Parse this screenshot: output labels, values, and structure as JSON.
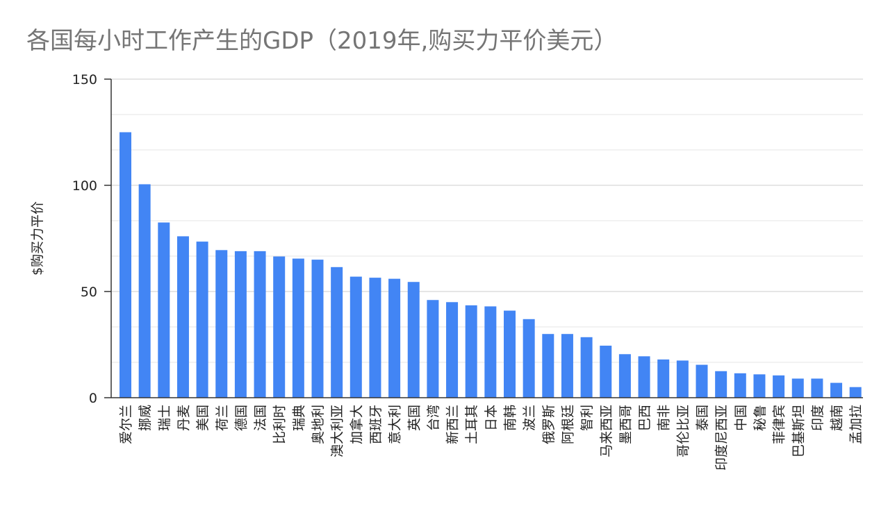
{
  "chart_data": {
    "type": "bar",
    "title": "各国每小时工作产生的GDP（2019年,购买力平价美元）",
    "ylabel": "$购买力平价",
    "xlabel": "",
    "ylim": [
      0,
      150
    ],
    "yticks": [
      0,
      50,
      100,
      150
    ],
    "grid": true,
    "legend": "none",
    "bar_color": "#4285F4",
    "categories": [
      "爱尔兰",
      "挪威",
      "瑞士",
      "丹麦",
      "美国",
      "荷兰",
      "德国",
      "法国",
      "比利时",
      "瑞典",
      "奥地利",
      "澳大利亚",
      "加拿大",
      "西班牙",
      "意大利",
      "英国",
      "台湾",
      "新西兰",
      "土耳其",
      "日本",
      "南韩",
      "波兰",
      "俄罗斯",
      "阿根廷",
      "智利",
      "马来西亚",
      "墨西哥",
      "巴西",
      "南非",
      "哥伦比亚",
      "泰国",
      "印度尼西亚",
      "中国",
      "秘鲁",
      "菲律宾",
      "巴基斯坦",
      "印度",
      "越南",
      "孟加拉"
    ],
    "values": [
      125,
      100.5,
      82.5,
      76,
      73.5,
      69.5,
      69,
      69,
      66.5,
      65.5,
      65,
      61.5,
      57,
      56.5,
      56,
      54.5,
      46,
      45,
      43.5,
      43,
      41,
      37,
      30,
      30,
      28.5,
      24.5,
      20.5,
      19.5,
      18,
      17.5,
      15.5,
      12.5,
      11.5,
      11,
      10.5,
      9,
      9,
      7,
      5
    ]
  }
}
